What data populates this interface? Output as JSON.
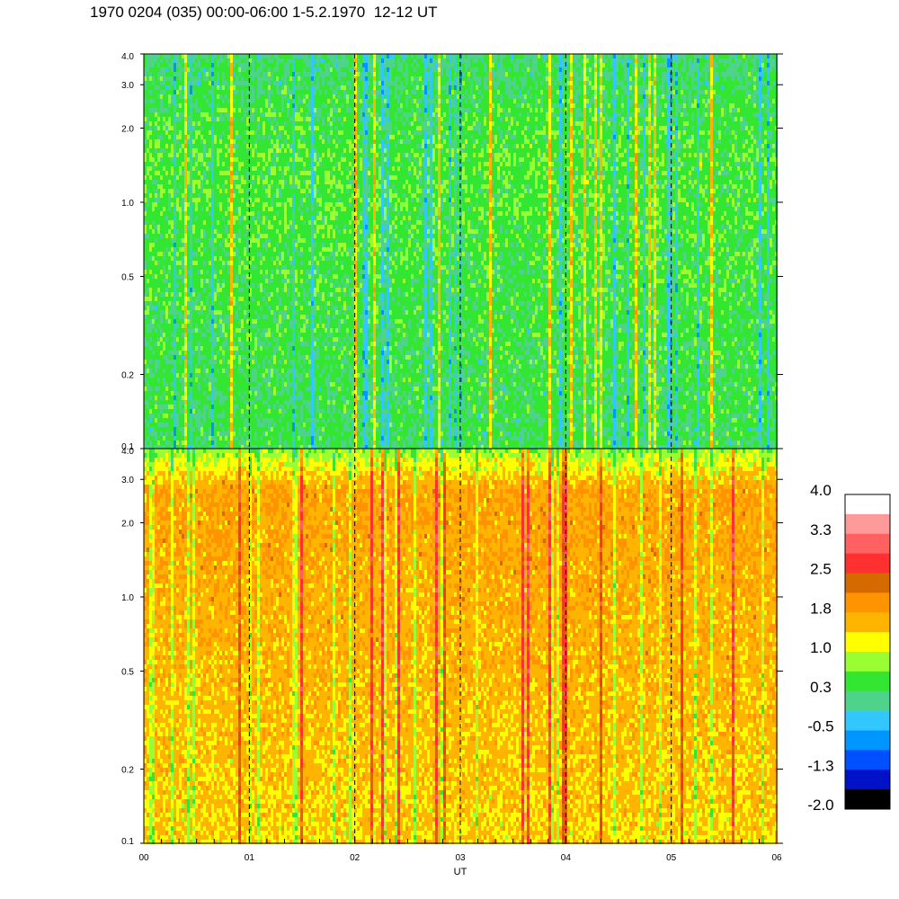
{
  "header": {
    "title": "1970 0204 (035) 00:00-06:00 1-5.2.1970  12-12 UT"
  },
  "chart_data": {
    "type": "heatmap",
    "title": "1970 0204 (035) 00:00-06:00 1-5.2.1970  12-12 UT",
    "xlabel": "UT",
    "x_ticks": [
      "00",
      "01",
      "02",
      "03",
      "04",
      "05",
      "06"
    ],
    "xlim": [
      0,
      6
    ],
    "panels": [
      {
        "name": "top",
        "y_ticks": [
          "0.1",
          "0.2",
          "0.5",
          "1.0",
          "2.0",
          "3.0",
          "4.0"
        ],
        "ylim": [
          0.1,
          4.0
        ],
        "y_scale": "log",
        "dominant_levels": [
          0.3,
          0.7,
          1.0
        ],
        "description_level_low_freq": 0.3,
        "description_level_high_freq": 0.6
      },
      {
        "name": "bottom",
        "y_ticks": [
          "0.1",
          "0.2",
          "0.5",
          "1.0",
          "2.0",
          "3.0",
          "4.0"
        ],
        "ylim": [
          0.1,
          4.0
        ],
        "y_scale": "log",
        "dominant_levels": [
          1.0,
          1.5,
          2.0
        ],
        "description_level_low_freq": 1.4,
        "description_level_high_freq": 1.8
      }
    ],
    "colorbar": {
      "labels": [
        "4.0",
        "3.3",
        "2.5",
        "1.8",
        "1.0",
        "0.3",
        "-0.5",
        "-1.3",
        "-2.0"
      ],
      "range": [
        -2.0,
        4.0
      ],
      "colors_top_to_bottom": [
        "#ffffff",
        "#ff9a9a",
        "#ff6060",
        "#ff3030",
        "#d46a00",
        "#ff9400",
        "#ffb400",
        "#ffff00",
        "#9aff32",
        "#32e632",
        "#4ed38a",
        "#32c8ff",
        "#0096ff",
        "#0050ff",
        "#0012c8",
        "#000000"
      ]
    },
    "vertical_dashed_lines_at": [
      1,
      2,
      3,
      4,
      5
    ],
    "grid": false
  }
}
